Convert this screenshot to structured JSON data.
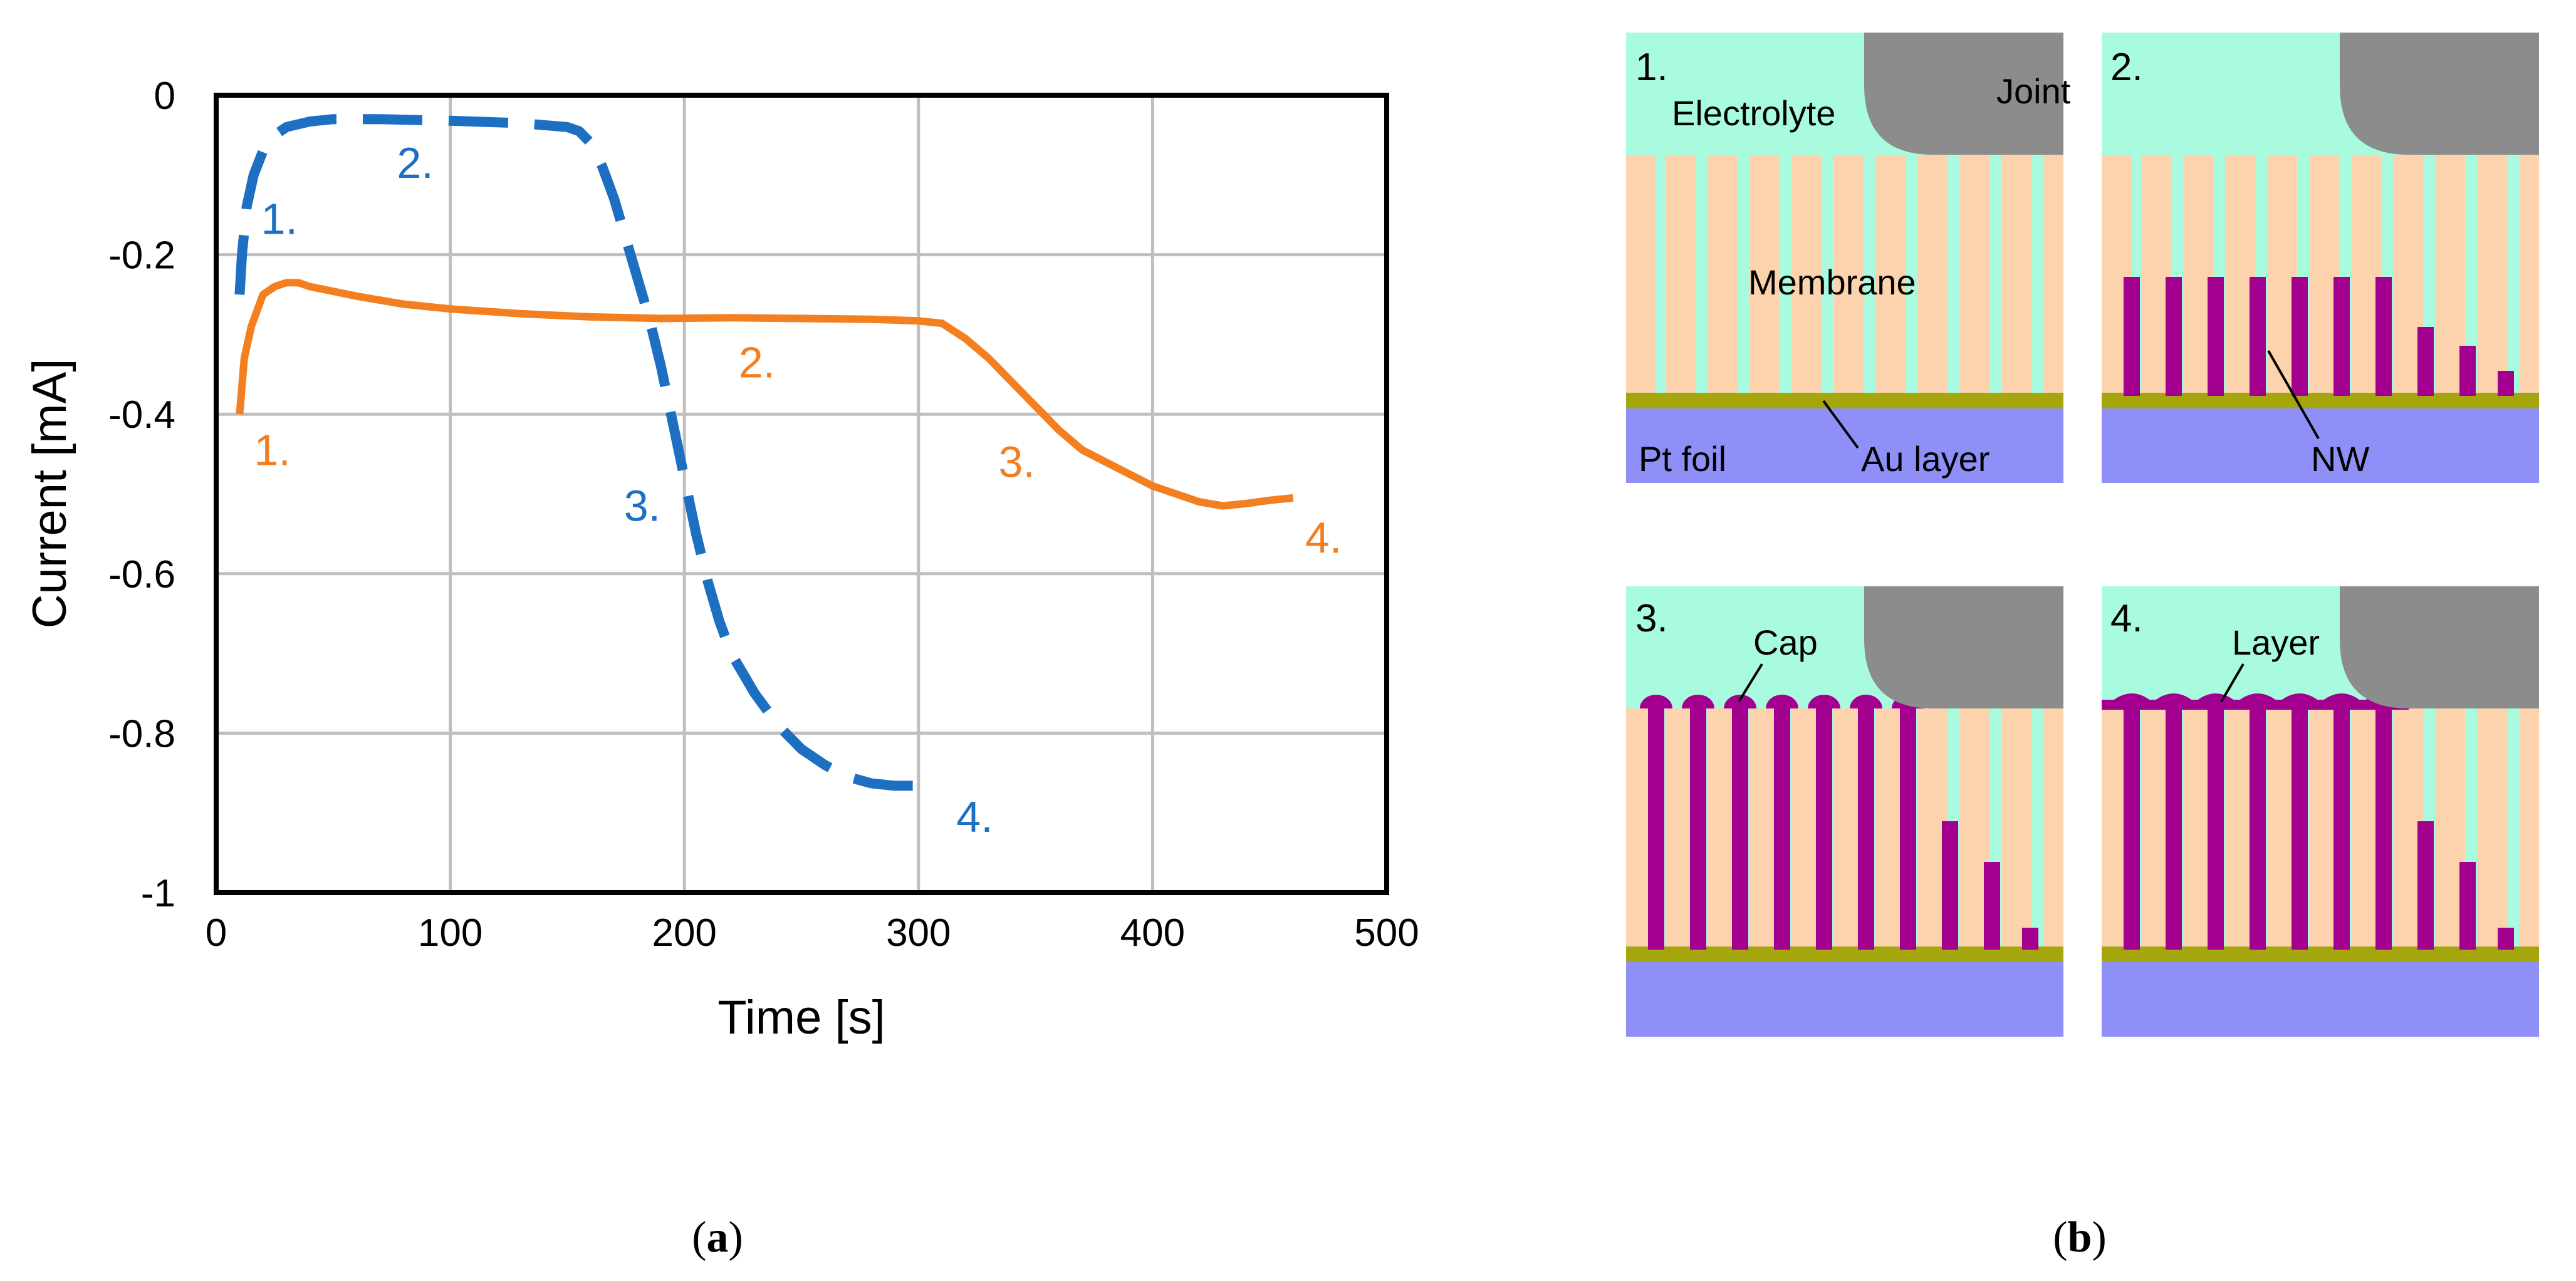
{
  "colors": {
    "orange": "#F47F20",
    "blue": "#1D6FC2",
    "electrolyte": "#A9FBE0",
    "membrane": "#FCD3AC",
    "pt_foil": "#8F8FF8",
    "au_layer": "#A5A50E",
    "nanowire": "#A3008F",
    "joint": "#8C8C8C",
    "grid": "#BFBFBF"
  },
  "chart_data": {
    "type": "line",
    "title": "",
    "xlabel": "Time [s]",
    "ylabel": "Current [mA]",
    "xlim": [
      0,
      500
    ],
    "ylim": [
      -1,
      0
    ],
    "xticks": [
      0,
      100,
      200,
      300,
      400,
      500
    ],
    "yticks": [
      0,
      -0.2,
      -0.4,
      -0.6,
      -0.8,
      -1
    ],
    "xtick_labels": [
      "0",
      "100",
      "200",
      "300",
      "400",
      "500"
    ],
    "ytick_labels": [
      "0",
      "-0.2",
      "-0.4",
      "-0.6",
      "-0.8",
      "-1"
    ],
    "grid": true,
    "series": [
      {
        "name": "orange",
        "style": "solid",
        "x": [
          10,
          12,
          15,
          20,
          25,
          30,
          35,
          40,
          60,
          80,
          100,
          130,
          160,
          190,
          220,
          250,
          280,
          300,
          310,
          320,
          330,
          340,
          350,
          360,
          370,
          380,
          390,
          400,
          410,
          420,
          430,
          440,
          450,
          460
        ],
        "y": [
          -0.4,
          -0.33,
          -0.29,
          -0.25,
          -0.24,
          -0.235,
          -0.235,
          -0.24,
          -0.252,
          -0.262,
          -0.268,
          -0.274,
          -0.278,
          -0.28,
          -0.279,
          -0.28,
          -0.281,
          -0.283,
          -0.286,
          -0.305,
          -0.33,
          -0.36,
          -0.39,
          -0.42,
          -0.445,
          -0.46,
          -0.475,
          -0.49,
          -0.5,
          -0.51,
          -0.515,
          -0.512,
          -0.508,
          -0.505
        ]
      },
      {
        "name": "blue",
        "style": "dashed",
        "x": [
          10,
          11,
          13,
          16,
          20,
          25,
          30,
          40,
          50,
          70,
          100,
          130,
          150,
          155,
          160,
          165,
          170,
          175,
          180,
          185,
          190,
          195,
          200,
          205,
          210,
          215,
          220,
          230,
          240,
          250,
          260,
          270,
          280,
          290,
          300
        ],
        "y": [
          -0.25,
          -0.2,
          -0.14,
          -0.1,
          -0.07,
          -0.05,
          -0.04,
          -0.033,
          -0.03,
          -0.03,
          -0.032,
          -0.035,
          -0.04,
          -0.045,
          -0.06,
          -0.09,
          -0.13,
          -0.18,
          -0.23,
          -0.28,
          -0.34,
          -0.41,
          -0.48,
          -0.55,
          -0.61,
          -0.66,
          -0.7,
          -0.75,
          -0.79,
          -0.82,
          -0.84,
          -0.855,
          -0.863,
          -0.866,
          -0.866
        ]
      }
    ],
    "annotations": [
      {
        "series": "blue",
        "text": "1.",
        "x": 27,
        "y": -0.155
      },
      {
        "series": "blue",
        "text": "2.",
        "x": 85,
        "y": -0.085
      },
      {
        "series": "blue",
        "text": "3.",
        "x": 182,
        "y": -0.515
      },
      {
        "series": "blue",
        "text": "4.",
        "x": 324,
        "y": -0.905
      },
      {
        "series": "orange",
        "text": "1.",
        "x": 24,
        "y": -0.445
      },
      {
        "series": "orange",
        "text": "2.",
        "x": 231,
        "y": -0.335
      },
      {
        "series": "orange",
        "text": "3.",
        "x": 342,
        "y": -0.46
      },
      {
        "series": "orange",
        "text": "4.",
        "x": 473,
        "y": -0.555
      }
    ]
  },
  "diagram": {
    "steps": [
      "1.",
      "2.",
      "3.",
      "4."
    ],
    "labels": {
      "electrolyte": "Electrolyte",
      "joint": "Joint",
      "membrane": "Membrane",
      "pt_foil": "Pt foil",
      "au_layer": "Au layer",
      "nw": "NW",
      "cap": "Cap",
      "layer": "Layer"
    }
  },
  "captions": {
    "a_open": "(",
    "a_letter": "a",
    "a_close": ")",
    "b_open": "(",
    "b_letter": "b",
    "b_close": ")"
  }
}
